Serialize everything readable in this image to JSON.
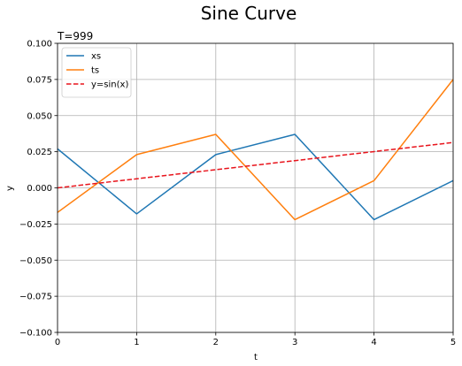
{
  "chart_data": {
    "type": "line",
    "title": "Sine Curve",
    "annotation": "T=999",
    "xlabel": "t",
    "ylabel": "y",
    "xlim": [
      0,
      5
    ],
    "ylim": [
      -0.1,
      0.1
    ],
    "x_ticks": [
      0,
      1,
      2,
      3,
      4,
      5
    ],
    "x_tick_labels": [
      "0",
      "1",
      "2",
      "3",
      "4",
      "5"
    ],
    "y_ticks": [
      -0.1,
      -0.075,
      -0.05,
      -0.025,
      0.0,
      0.025,
      0.05,
      0.075,
      0.1
    ],
    "y_tick_labels": [
      "−0.100",
      "−0.075",
      "−0.050",
      "−0.025",
      "0.000",
      "0.025",
      "0.050",
      "0.075",
      "0.100"
    ],
    "grid": true,
    "legend_position": "top-left",
    "x": [
      0,
      1,
      2,
      3,
      4,
      5
    ],
    "series": [
      {
        "name": "xs",
        "color": "#1f77b4",
        "dash": "solid",
        "values": [
          0.027,
          -0.018,
          0.023,
          0.037,
          -0.022,
          0.005
        ]
      },
      {
        "name": "ts",
        "color": "#ff7f0e",
        "dash": "solid",
        "values": [
          -0.017,
          0.023,
          0.037,
          -0.022,
          0.005,
          0.075
        ]
      },
      {
        "name": "y=sin(x)",
        "color": "#e8141c",
        "dash": "dashed",
        "values": [
          0.0,
          0.00628,
          0.01256,
          0.01884,
          0.02511,
          0.03138
        ]
      }
    ]
  }
}
